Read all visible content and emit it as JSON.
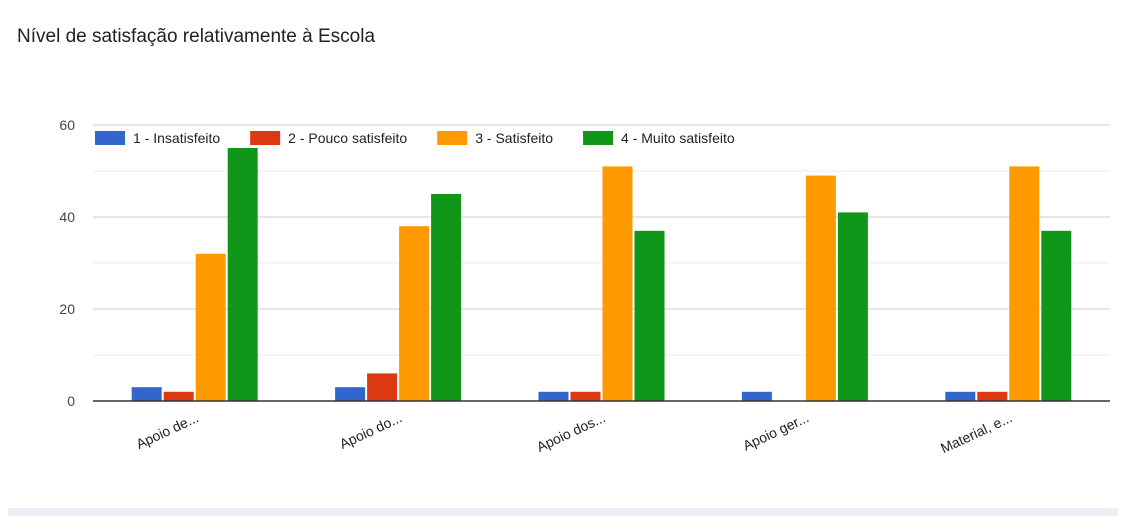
{
  "chart_data": {
    "type": "bar",
    "title": "Nível de satisfação relativamente à Escola",
    "categories": [
      "Apoio de...",
      "Apoio do...",
      "Apoio dos...",
      "Apoio ger...",
      "Material, e..."
    ],
    "series": [
      {
        "name": "1 - Insatisfeito",
        "color": "#3366cc",
        "values": [
          3,
          3,
          2,
          2,
          2
        ]
      },
      {
        "name": "2 - Pouco satisfeito",
        "color": "#dc3912",
        "values": [
          2,
          6,
          2,
          0,
          2
        ]
      },
      {
        "name": "3 - Satisfeito",
        "color": "#ff9900",
        "values": [
          32,
          38,
          51,
          49,
          51
        ]
      },
      {
        "name": "4 - Muito satisfeito",
        "color": "#109618",
        "values": [
          55,
          45,
          37,
          41,
          37
        ]
      }
    ],
    "ylim": [
      0,
      60
    ],
    "yticks": [
      0,
      20,
      40,
      60
    ],
    "grid": true,
    "legend_position": "top"
  }
}
